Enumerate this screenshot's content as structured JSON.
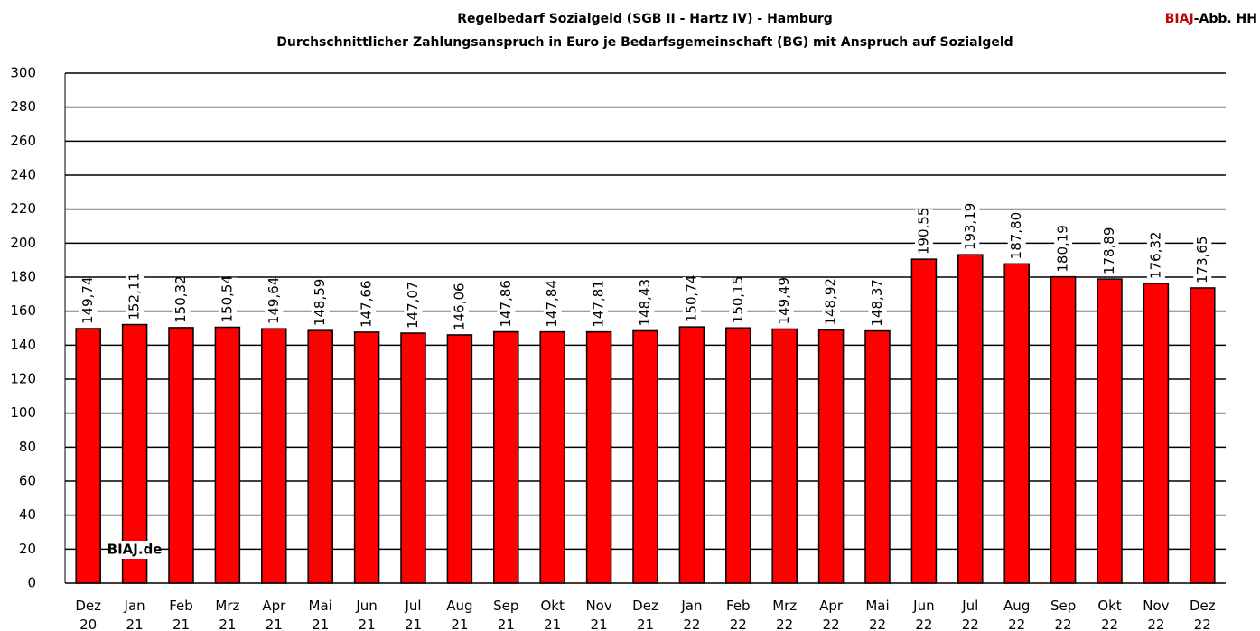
{
  "chart_data": {
    "type": "bar",
    "title": "Regelbedarf Sozialgeld (SGB II - Hartz IV) - Hamburg",
    "subtitle": "Durchschnittlicher Zahlungsanspruch in Euro je Bedarfsgemeinschaft (BG) mit Anspruch auf Sozialgeld",
    "corner_label": [
      "BIAJ",
      "-Abb. HH"
    ],
    "watermark": "BIAJ.de",
    "categories": [
      "Dez 20",
      "Jan 21",
      "Feb 21",
      "Mrz 21",
      "Apr 21",
      "Mai 21",
      "Jun 21",
      "Jul 21",
      "Aug 21",
      "Sep 21",
      "Okt 21",
      "Nov 21",
      "Dez 21",
      "Jan 22",
      "Feb 22",
      "Mrz 22",
      "Apr 22",
      "Mai 22",
      "Jun 22",
      "Jul 22",
      "Aug 22",
      "Sep 22",
      "Okt 22",
      "Nov 22",
      "Dez 22"
    ],
    "values": [
      149.74,
      152.11,
      150.32,
      150.54,
      149.64,
      148.59,
      147.66,
      147.07,
      146.06,
      147.86,
      147.84,
      147.81,
      148.43,
      150.74,
      150.15,
      149.49,
      148.92,
      148.37,
      190.55,
      193.19,
      187.8,
      180.19,
      178.89,
      176.32,
      173.65
    ],
    "value_labels": [
      "149,74",
      "152,11",
      "150,32",
      "150,54",
      "149,64",
      "148,59",
      "147,66",
      "147,07",
      "146,06",
      "147,86",
      "147,84",
      "147,81",
      "148,43",
      "150,74",
      "150,15",
      "149,49",
      "148,92",
      "148,37",
      "190,55",
      "193,19",
      "187,80",
      "180,19",
      "178,89",
      "176,32",
      "173,65"
    ],
    "color": "#ff0000",
    "ylim": [
      0,
      300
    ],
    "yticks": [
      0,
      20,
      40,
      60,
      80,
      100,
      120,
      140,
      160,
      180,
      200,
      220,
      240,
      260,
      280,
      300
    ],
    "grid": true
  }
}
